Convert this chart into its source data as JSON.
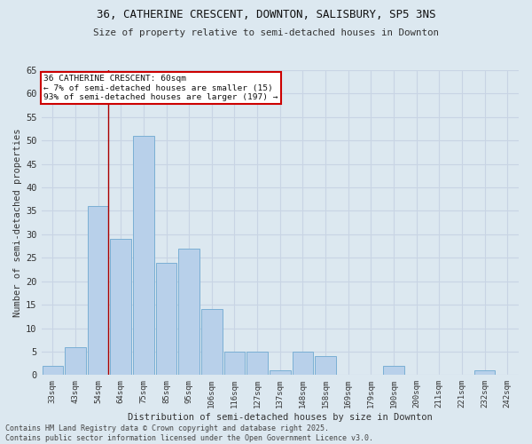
{
  "title1": "36, CATHERINE CRESCENT, DOWNTON, SALISBURY, SP5 3NS",
  "title2": "Size of property relative to semi-detached houses in Downton",
  "xlabel": "Distribution of semi-detached houses by size in Downton",
  "ylabel": "Number of semi-detached properties",
  "bins": [
    "33sqm",
    "43sqm",
    "54sqm",
    "64sqm",
    "75sqm",
    "85sqm",
    "95sqm",
    "106sqm",
    "116sqm",
    "127sqm",
    "137sqm",
    "148sqm",
    "158sqm",
    "169sqm",
    "179sqm",
    "190sqm",
    "200sqm",
    "211sqm",
    "221sqm",
    "232sqm",
    "242sqm"
  ],
  "values": [
    2,
    6,
    36,
    29,
    51,
    24,
    27,
    14,
    5,
    5,
    1,
    5,
    4,
    0,
    0,
    2,
    0,
    0,
    0,
    1,
    0
  ],
  "bar_color": "#b8d0ea",
  "bar_edge_color": "#7aafd4",
  "grid_color": "#c8d4e4",
  "background_color": "#dce8f0",
  "vline_color": "#aa0000",
  "vline_x_index": 2,
  "annotation_title": "36 CATHERINE CRESCENT: 60sqm",
  "annotation_line1": "← 7% of semi-detached houses are smaller (15)",
  "annotation_line2": "93% of semi-detached houses are larger (197) →",
  "annotation_box_color": "#ffffff",
  "annotation_border_color": "#cc0000",
  "footer1": "Contains HM Land Registry data © Crown copyright and database right 2025.",
  "footer2": "Contains public sector information licensed under the Open Government Licence v3.0.",
  "ylim": [
    0,
    65
  ],
  "yticks": [
    0,
    5,
    10,
    15,
    20,
    25,
    30,
    35,
    40,
    45,
    50,
    55,
    60,
    65
  ]
}
